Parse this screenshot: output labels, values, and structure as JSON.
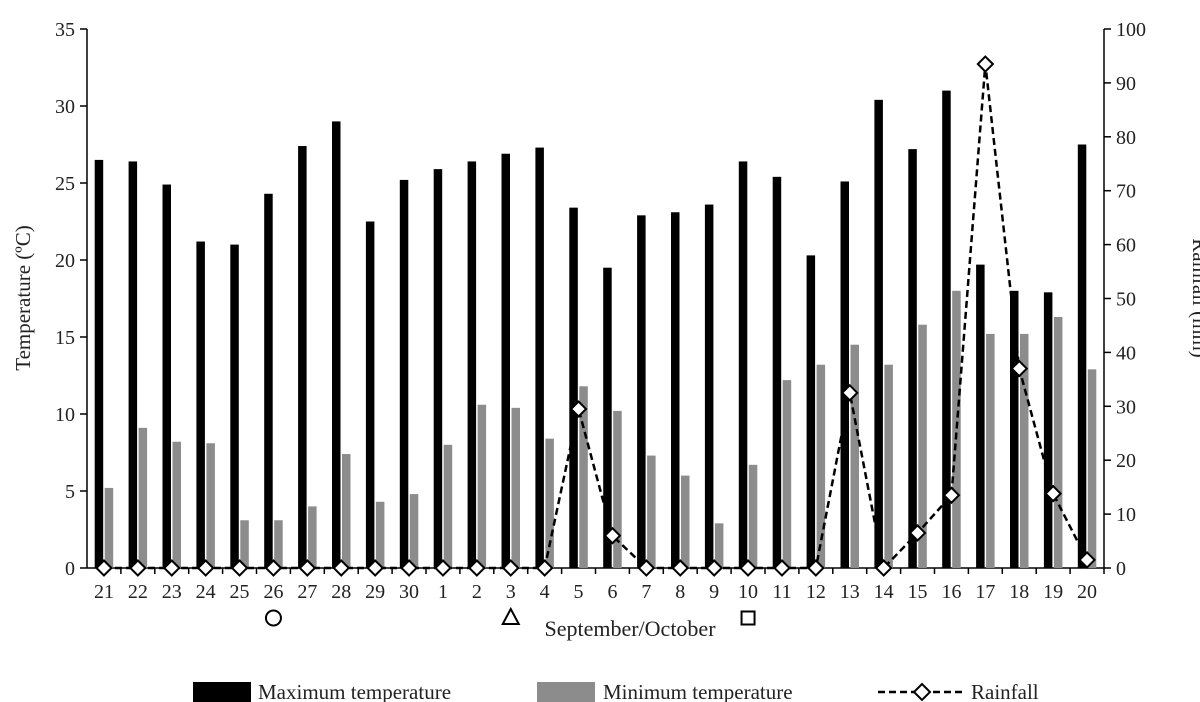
{
  "chart_data": {
    "type": "bar",
    "categories": [
      "21",
      "22",
      "23",
      "24",
      "25",
      "26",
      "27",
      "28",
      "29",
      "30",
      "1",
      "2",
      "3",
      "4",
      "5",
      "6",
      "7",
      "8",
      "9",
      "10",
      "11",
      "12",
      "13",
      "14",
      "15",
      "16",
      "17",
      "18",
      "19",
      "20"
    ],
    "xlabel": "September/October",
    "ylabel_left": "Temperature (ºC)",
    "ylabel_right": "Rainfall (mm)",
    "ylim_left": [
      0,
      35
    ],
    "yticks_left": [
      0,
      5,
      10,
      15,
      20,
      25,
      30,
      35
    ],
    "ylim_right": [
      0,
      100
    ],
    "yticks_right": [
      0,
      10,
      20,
      30,
      40,
      50,
      60,
      70,
      80,
      90,
      100
    ],
    "grid": false,
    "legend_position": "bottom",
    "series": [
      {
        "name": "Maximum temperature",
        "kind": "bar",
        "axis": "left",
        "color": "#000000",
        "values": [
          26.5,
          26.4,
          24.9,
          21.2,
          21.0,
          24.3,
          27.4,
          29.0,
          22.5,
          25.2,
          25.9,
          26.4,
          26.9,
          27.3,
          23.4,
          19.5,
          22.9,
          23.1,
          23.6,
          26.4,
          25.4,
          20.3,
          25.1,
          30.4,
          27.2,
          31.0,
          19.7,
          18.0,
          17.9,
          27.5
        ]
      },
      {
        "name": "Minimum temperature",
        "kind": "bar",
        "axis": "left",
        "color": "#8c8c8c",
        "values": [
          5.2,
          9.1,
          8.2,
          8.1,
          3.1,
          3.1,
          4.0,
          7.4,
          4.3,
          4.8,
          8.0,
          10.6,
          10.4,
          8.4,
          11.8,
          10.2,
          7.3,
          6.0,
          2.9,
          6.7,
          12.2,
          13.2,
          14.5,
          13.2,
          15.8,
          18.0,
          15.2,
          15.2,
          16.3,
          12.9
        ]
      },
      {
        "name": "Rainfall",
        "kind": "line",
        "axis": "right",
        "color": "#000000",
        "marker": "diamond",
        "line_style": "dashed",
        "values": [
          0,
          0,
          0,
          0,
          0,
          0,
          0,
          0,
          0,
          0,
          0,
          0,
          0,
          0,
          29.5,
          6.0,
          0,
          0,
          0,
          0,
          0,
          0,
          32.5,
          0,
          6.5,
          13.5,
          93.5,
          37.0,
          13.8,
          1.5
        ]
      }
    ],
    "annotations": [
      {
        "category": "26",
        "symbol": "circle"
      },
      {
        "category": "3",
        "symbol": "triangle"
      },
      {
        "category": "10",
        "symbol": "square"
      }
    ]
  }
}
